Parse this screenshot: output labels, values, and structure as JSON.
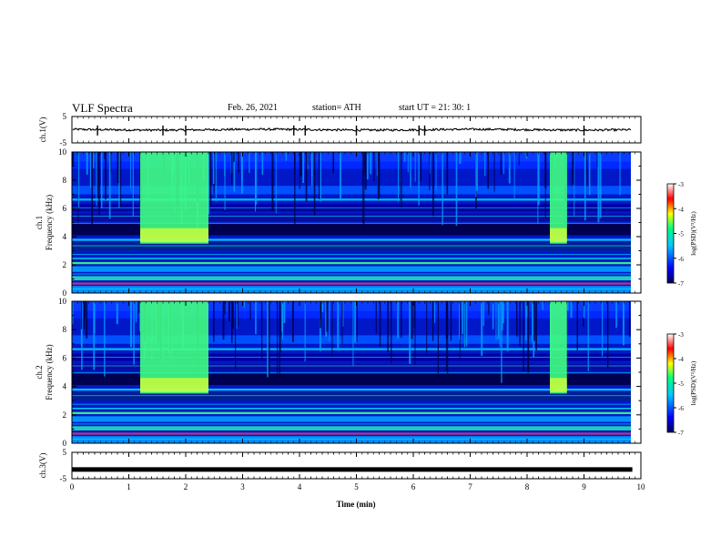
{
  "header": {
    "title": "VLF Spectra",
    "date": "Feb. 26, 2021",
    "station": "station= ATH",
    "start": "start  UT =   21: 30: 1"
  },
  "colors": {
    "spectrogram_scale": [
      "#000066",
      "#0000ff",
      "#00c8ff",
      "#00ff80",
      "#ffff00",
      "#ff0000",
      "#ffffff"
    ]
  },
  "chart_data": [
    {
      "type": "line",
      "name": "waveform-ch1",
      "ylabel": "ch.1(V)",
      "ylim": [
        -5,
        5
      ],
      "yticks": [
        "5",
        "-5"
      ],
      "baseline": 0,
      "x_range": [
        0,
        9.85
      ]
    },
    {
      "type": "heatmap",
      "name": "spectrogram-ch1",
      "ylabel": "ch.1 Frequency (kHz)",
      "ylim": [
        0,
        10
      ],
      "yticks": [
        "0",
        "2",
        "4",
        "6",
        "8",
        "10"
      ],
      "x_range": [
        0,
        9.85
      ],
      "high_activity_intervals_min": [
        [
          1.2,
          2.4
        ],
        [
          8.4,
          8.7
        ]
      ],
      "colorbar": {
        "label": "log(PSD)(V²/Hz)",
        "range": [
          -7,
          -3
        ],
        "ticks": [
          "-3",
          "-4",
          "-5",
          "-6",
          "-7"
        ]
      }
    },
    {
      "type": "heatmap",
      "name": "spectrogram-ch2",
      "ylabel": "ch.2 Frequency (kHz)",
      "ylim": [
        0,
        10
      ],
      "yticks": [
        "0",
        "2",
        "4",
        "6",
        "8",
        "10"
      ],
      "x_range": [
        0,
        9.85
      ],
      "high_activity_intervals_min": [
        [
          1.2,
          2.4
        ],
        [
          8.4,
          8.7
        ]
      ],
      "colorbar": {
        "label": "log(PSD)(V²/Hz)",
        "range": [
          -7,
          -3
        ],
        "ticks": [
          "-3",
          "-4",
          "-5",
          "-6",
          "-7"
        ]
      }
    },
    {
      "type": "line",
      "name": "waveform-ch3",
      "ylabel": "ch.3(V)",
      "ylim": [
        -5,
        5
      ],
      "yticks": [
        "5",
        "-5"
      ],
      "baseline": -1.5,
      "x_range": [
        0,
        9.85
      ]
    }
  ],
  "xaxis": {
    "label": "Time  (min)",
    "range": [
      0,
      10
    ],
    "ticks": [
      "0",
      "1",
      "2",
      "3",
      "4",
      "5",
      "6",
      "7",
      "8",
      "9",
      "10"
    ]
  }
}
